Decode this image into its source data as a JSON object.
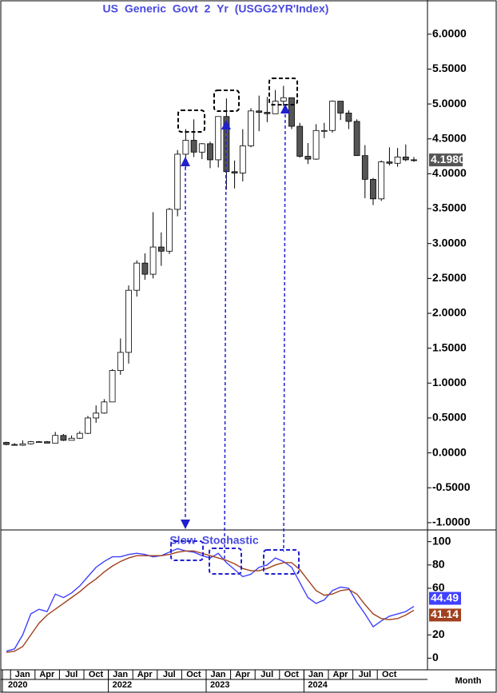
{
  "chart_data": [
    {
      "type": "candlestick",
      "title": "US Generic Govt 2 Yr (USGG2YR'Index)",
      "x": [
        "2020-12",
        "2021-01",
        "2021-02",
        "2021-03",
        "2021-04",
        "2021-05",
        "2021-06",
        "2021-07",
        "2021-08",
        "2021-09",
        "2021-10",
        "2021-11",
        "2021-12",
        "2022-01",
        "2022-02",
        "2022-03",
        "2022-04",
        "2022-05",
        "2022-06",
        "2022-07",
        "2022-08",
        "2022-09",
        "2022-10",
        "2022-11",
        "2022-12",
        "2023-01",
        "2023-02",
        "2023-03",
        "2023-04",
        "2023-05",
        "2023-06",
        "2023-07",
        "2023-08",
        "2023-09",
        "2023-10",
        "2023-11",
        "2023-12",
        "2024-01",
        "2024-02",
        "2024-03",
        "2024-04",
        "2024-05",
        "2024-06",
        "2024-07",
        "2024-08",
        "2024-09",
        "2024-10",
        "2024-11",
        "2024-12",
        "2025-01",
        "2025-02"
      ],
      "open": [
        0.15,
        0.12,
        0.11,
        0.13,
        0.16,
        0.16,
        0.14,
        0.25,
        0.18,
        0.21,
        0.28,
        0.5,
        0.57,
        0.73,
        1.18,
        1.44,
        2.33,
        2.72,
        2.56,
        2.95,
        2.89,
        3.49,
        4.28,
        4.48,
        4.31,
        4.43,
        4.2,
        4.82,
        4.03,
        4.01,
        4.4,
        4.9,
        4.88,
        4.86,
        5.04,
        5.09,
        4.68,
        4.25,
        4.21,
        4.62,
        4.62,
        5.04,
        4.87,
        4.75,
        4.26,
        3.92,
        3.64,
        4.17,
        4.15,
        4.24,
        4.2
      ],
      "high": [
        0.16,
        0.14,
        0.18,
        0.17,
        0.17,
        0.17,
        0.3,
        0.27,
        0.25,
        0.31,
        0.53,
        0.68,
        0.77,
        1.2,
        1.64,
        2.4,
        2.76,
        2.86,
        3.45,
        3.16,
        3.51,
        4.34,
        4.64,
        4.78,
        4.44,
        4.46,
        4.82,
        5.08,
        4.19,
        4.64,
        4.94,
        5.12,
        5.1,
        5.2,
        5.26,
        5.09,
        4.73,
        4.44,
        4.71,
        4.73,
        5.05,
        5.04,
        4.91,
        4.78,
        4.41,
        3.94,
        4.19,
        4.38,
        4.37,
        4.42,
        4.24
      ],
      "low": [
        0.11,
        0.11,
        0.1,
        0.12,
        0.15,
        0.14,
        0.14,
        0.17,
        0.18,
        0.2,
        0.27,
        0.43,
        0.56,
        0.73,
        1.12,
        1.28,
        2.24,
        2.48,
        2.5,
        2.68,
        2.85,
        3.39,
        4.09,
        4.24,
        4.21,
        4.08,
        4.09,
        3.77,
        3.79,
        3.89,
        4.38,
        4.61,
        4.74,
        4.86,
        4.97,
        4.64,
        4.23,
        4.14,
        4.2,
        4.51,
        4.59,
        4.77,
        4.64,
        4.26,
        3.65,
        3.55,
        3.61,
        4.12,
        4.1,
        4.18,
        4.17
      ],
      "close": [
        0.12,
        0.11,
        0.13,
        0.16,
        0.16,
        0.14,
        0.25,
        0.18,
        0.21,
        0.28,
        0.5,
        0.57,
        0.73,
        1.18,
        1.44,
        2.33,
        2.72,
        2.56,
        2.95,
        2.89,
        3.49,
        4.28,
        4.48,
        4.31,
        4.43,
        4.2,
        4.82,
        4.03,
        4.01,
        4.4,
        4.9,
        4.88,
        4.86,
        5.04,
        5.09,
        4.68,
        4.25,
        4.21,
        4.62,
        4.62,
        5.04,
        4.87,
        4.75,
        4.26,
        3.92,
        3.64,
        4.17,
        4.15,
        4.24,
        4.2,
        4.198
      ],
      "close_labels": [
        null,
        null,
        null,
        null,
        null,
        null,
        null,
        null,
        null,
        null,
        null,
        null,
        null,
        null,
        null,
        null,
        null,
        null,
        null,
        null,
        null,
        null,
        null,
        null,
        null,
        null,
        null,
        null,
        null,
        null,
        null,
        null,
        null,
        null,
        null,
        null,
        null,
        null,
        null,
        null,
        null,
        null,
        null,
        null,
        null,
        null,
        null,
        null,
        null,
        null,
        "4.1980"
      ],
      "up_color": "#ffffff",
      "down_color": "#555555",
      "ylim": [
        -1.07,
        6.49
      ],
      "yticks": [
        {
          "value": -1,
          "label": "-1.0000"
        },
        {
          "value": -0.5,
          "label": "-0.5000"
        },
        {
          "value": 0,
          "label": "0.0000"
        },
        {
          "value": 0.5,
          "label": "0.5000"
        },
        {
          "value": 1,
          "label": "1.0000"
        },
        {
          "value": 1.5,
          "label": "1.5000"
        },
        {
          "value": 2,
          "label": "2.0000"
        },
        {
          "value": 2.5,
          "label": "2.5000"
        },
        {
          "value": 3,
          "label": "3.0000"
        },
        {
          "value": 3.5,
          "label": "3.5000"
        },
        {
          "value": 4,
          "label": "4.0000"
        },
        {
          "value": 4.5,
          "label": "4.5000"
        },
        {
          "value": 5,
          "label": "5.0000"
        },
        {
          "value": 5.5,
          "label": "5.5000"
        },
        {
          "value": 6,
          "label": "6.0000"
        }
      ]
    },
    {
      "type": "line",
      "title": "Slow Stochastic",
      "x": [
        "2020-12",
        "2021-01",
        "2021-02",
        "2021-03",
        "2021-04",
        "2021-05",
        "2021-06",
        "2021-07",
        "2021-08",
        "2021-09",
        "2021-10",
        "2021-11",
        "2021-12",
        "2022-01",
        "2022-02",
        "2022-03",
        "2022-04",
        "2022-05",
        "2022-06",
        "2022-07",
        "2022-08",
        "2022-09",
        "2022-10",
        "2022-11",
        "2022-12",
        "2023-01",
        "2023-02",
        "2023-03",
        "2023-04",
        "2023-05",
        "2023-06",
        "2023-07",
        "2023-08",
        "2023-09",
        "2023-10",
        "2023-11",
        "2023-12",
        "2024-01",
        "2024-02",
        "2024-03",
        "2024-04",
        "2024-05",
        "2024-06",
        "2024-07",
        "2024-08",
        "2024-09",
        "2024-10",
        "2024-11",
        "2024-12",
        "2025-01",
        "2025-02"
      ],
      "series": [
        {
          "color": "#4040ff",
          "values": [
            6,
            8,
            20,
            38,
            42,
            40,
            55,
            52,
            56,
            62,
            70,
            78,
            83,
            87,
            87,
            89,
            90,
            89,
            87,
            88,
            91,
            94,
            92,
            91,
            88,
            86,
            90,
            82,
            76,
            70,
            72,
            78,
            80,
            86,
            83,
            78,
            65,
            52,
            47,
            50,
            58,
            61,
            60,
            48,
            38,
            27,
            32,
            36,
            38,
            40,
            44.49
          ]
        },
        {
          "color": "#a0401e",
          "values": [
            5,
            6,
            10,
            20,
            30,
            37,
            42,
            47,
            52,
            57,
            63,
            68,
            74,
            79,
            83,
            86,
            88,
            88,
            88,
            88,
            89,
            91,
            92,
            92,
            90,
            88,
            86,
            84,
            81,
            77,
            75,
            75,
            77,
            80,
            82,
            82,
            76,
            67,
            58,
            54,
            55,
            58,
            59,
            55,
            46,
            38,
            34,
            33,
            34,
            37,
            41.14
          ]
        }
      ],
      "ylim": [
        -10,
        108
      ],
      "yticks": [
        0,
        20,
        60,
        80,
        100
      ],
      "xticks": [
        {
          "value": "2021-01",
          "label": "Jan"
        },
        {
          "value": "2021-04",
          "label": "Apr"
        },
        {
          "value": "2021-07",
          "label": "Jul"
        },
        {
          "value": "2021-10",
          "label": "Oct"
        },
        {
          "value": "2022-01",
          "label": "Jan"
        },
        {
          "value": "2022-04",
          "label": "Apr"
        },
        {
          "value": "2022-07",
          "label": "Jul"
        },
        {
          "value": "2022-10",
          "label": "Oct"
        },
        {
          "value": "2023-01",
          "label": "Jan"
        },
        {
          "value": "2023-04",
          "label": "Apr"
        },
        {
          "value": "2023-07",
          "label": "Jul"
        },
        {
          "value": "2023-10",
          "label": "Oct"
        },
        {
          "value": "2024-01",
          "label": "Jan"
        },
        {
          "value": "2024-04",
          "label": "Apr"
        },
        {
          "value": "2024-07",
          "label": "Jul"
        },
        {
          "value": "2024-10",
          "label": "Oct"
        }
      ],
      "year_ticks": [
        {
          "value": "2020-12",
          "label": "2020"
        },
        {
          "value": "2022-01",
          "label": "2022"
        },
        {
          "value": "2023-01",
          "label": "2023"
        },
        {
          "value": "2024-01",
          "label": "2024"
        }
      ],
      "xlabel": "Month"
    }
  ]
}
